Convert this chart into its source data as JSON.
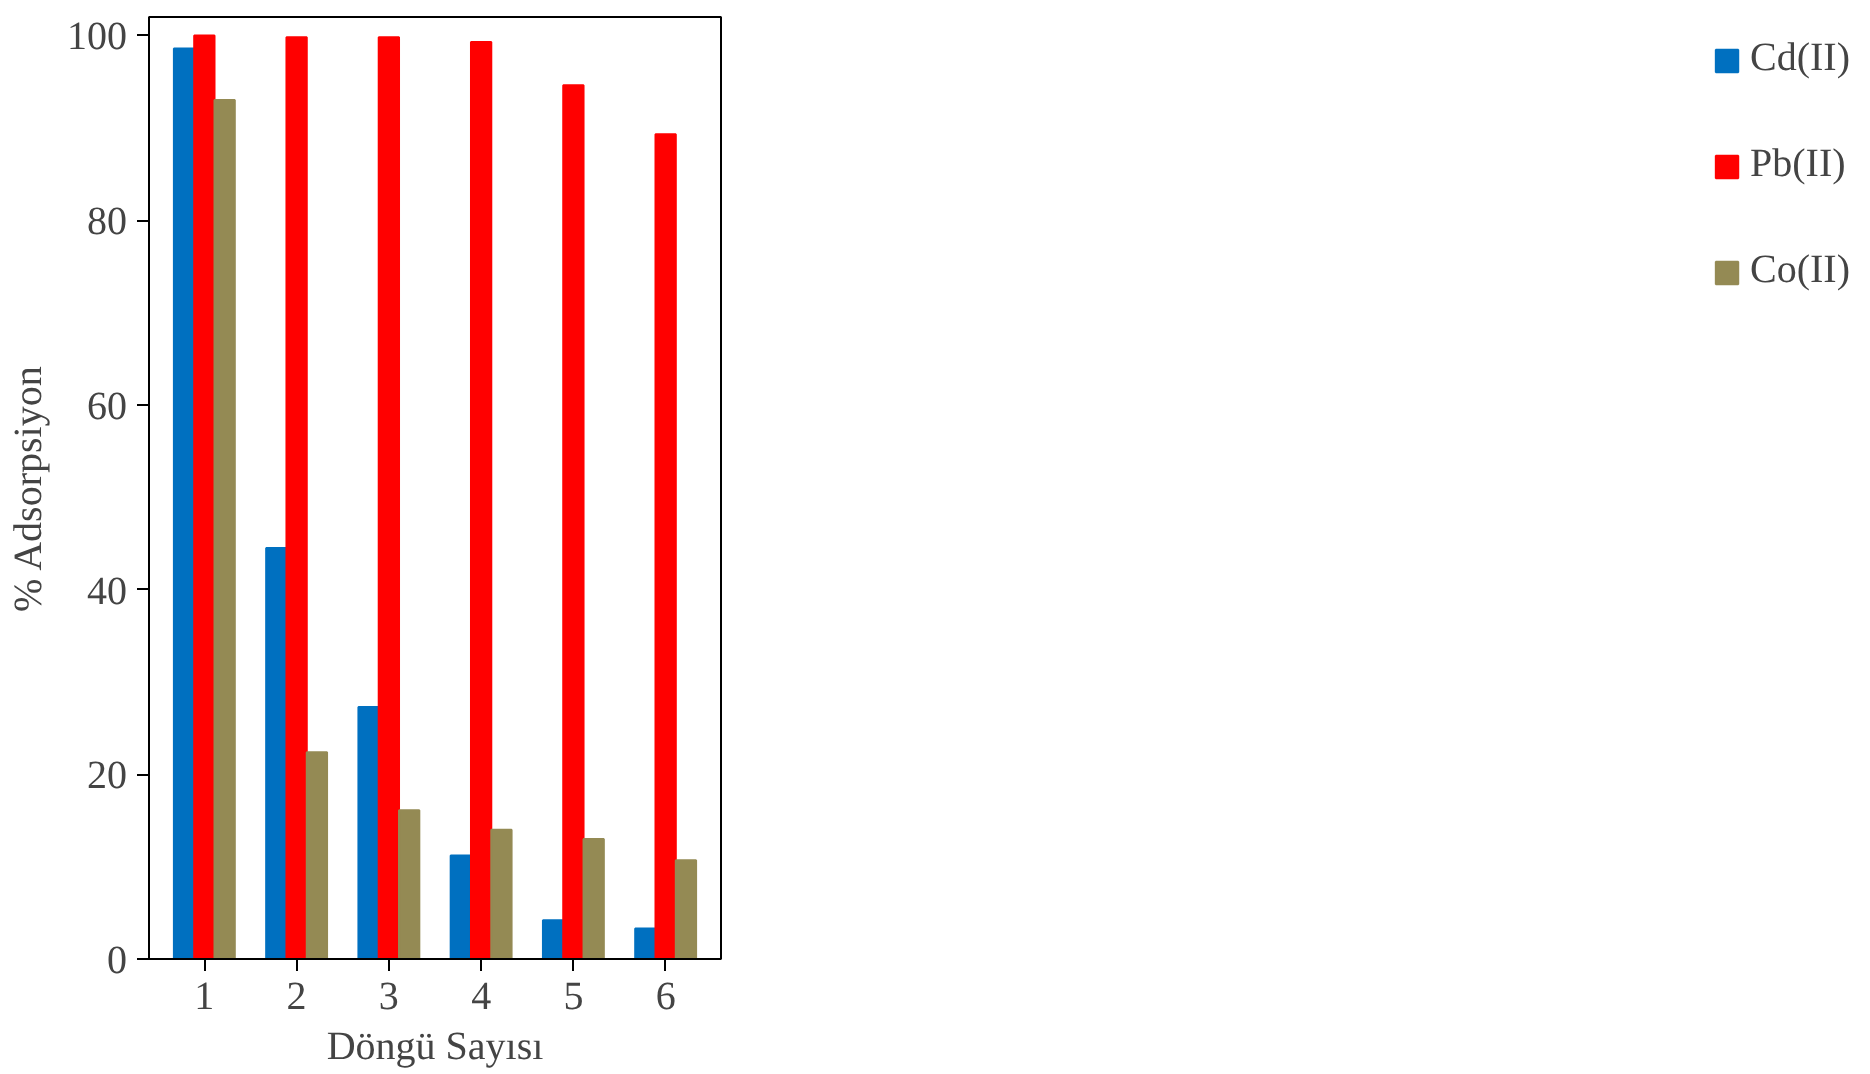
{
  "chart_data": {
    "type": "bar",
    "xlabel": "Döngü Sayısı",
    "ylabel": "% Adsorpsiyon",
    "categories": [
      "1",
      "2",
      "3",
      "4",
      "5",
      "6"
    ],
    "series": [
      {
        "name": "Cd(II)",
        "color": "#0070c0",
        "values": [
          98.6,
          44.5,
          27.3,
          11.2,
          4.2,
          3.3
        ]
      },
      {
        "name": "Pb(II)",
        "color": "#ff0000",
        "values": [
          100,
          99.8,
          99.8,
          99.3,
          94.6,
          89.3
        ]
      },
      {
        "name": "Co(II)",
        "color": "#948a54",
        "values": [
          93,
          22.4,
          16.1,
          14,
          13,
          10.7
        ]
      }
    ],
    "ylim": [
      0,
      102
    ],
    "yticks": [
      0,
      20,
      40,
      60,
      80,
      100
    ],
    "grid": false,
    "legend": "right"
  }
}
